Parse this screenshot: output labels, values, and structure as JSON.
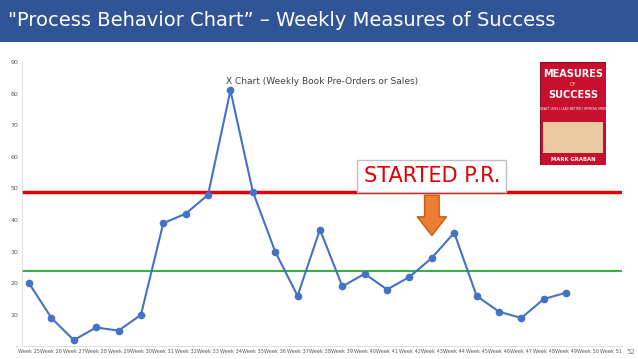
{
  "header": {
    "title": "\"Process Behavior Chart” – Weekly Measures of Success"
  },
  "chart_data": {
    "type": "line",
    "title": "X Chart (Weekly Book Pre-Orders or Sales)",
    "categories": [
      "Week 25",
      "Week 26",
      "Week 27",
      "Week 28",
      "Week 29",
      "Week 30",
      "Week 31",
      "Week 32",
      "Week 33",
      "Week 34",
      "Week 35",
      "Week 36",
      "Week 37",
      "Week 38",
      "Week 39",
      "Week 40",
      "Week 41",
      "Week 42",
      "Week 43",
      "Week 44",
      "Week 45",
      "Week 46",
      "Week 47",
      "Week 48",
      "Week 49",
      "Week 50",
      "Week 51"
    ],
    "values": [
      20,
      9,
      2,
      6,
      5,
      10,
      39,
      42,
      48,
      81,
      49,
      30,
      16,
      37,
      19,
      23,
      18,
      22,
      28,
      36,
      16,
      11,
      9,
      15,
      17,
      null,
      null
    ],
    "color": "#4472c4",
    "marker": "circle",
    "line_style": "solid",
    "ylim": [
      0,
      90
    ],
    "yticks": [
      {
        "value": 0,
        "label": "-"
      },
      10,
      20,
      30,
      40,
      50,
      60,
      70,
      80,
      90
    ],
    "grid": false,
    "reference_lines": [
      {
        "value": 49,
        "color": "#e00000"
      },
      {
        "value": 24,
        "color": "#3cb043"
      }
    ],
    "annotations": [
      {
        "text": "STARTED P.R.",
        "category": "Week 43",
        "color": "#e00000"
      }
    ]
  },
  "book_cover": {
    "title_lines": [
      "MEASURES",
      "OF",
      "SUCCESS"
    ],
    "tagline": "| REACT LESS | LEAD BETTER | IMPROVE MORE |",
    "author": "MARK GRABAN"
  },
  "page_number": "52"
}
